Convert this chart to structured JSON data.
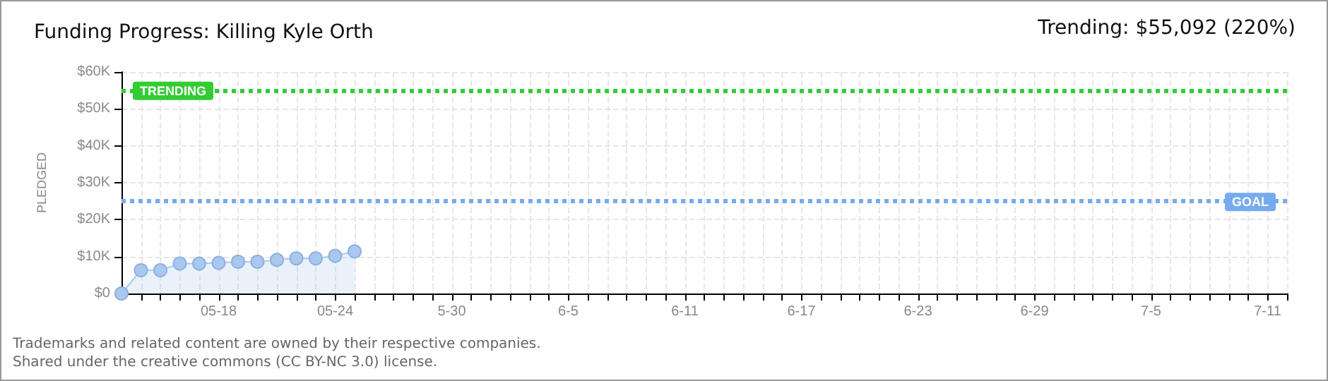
{
  "chart_data": {
    "type": "area",
    "title": "Funding Progress: Killing Kyle Orth",
    "ylabel": "PLEDGED",
    "annotations": [
      "Trending: $55,092 (220%)",
      "Trademarks and related content are owned by their respective companies.",
      "Shared under the creative commons (CC BY-NC 3.0) license."
    ],
    "x": [
      "--05-13",
      "--05-14",
      "--05-15",
      "--05-16",
      "--05-17",
      "--05-18",
      "--05-19",
      "--05-20",
      "--05-21",
      "--05-22",
      "--05-23",
      "--05-24",
      "--05-25"
    ],
    "series": [
      {
        "color": "#a8c8f0",
        "values": [
          0,
          6300,
          6300,
          8100,
          8100,
          8300,
          8600,
          8600,
          9100,
          9500,
          9500,
          10200,
          11400
        ]
      }
    ],
    "marker": "circle",
    "grid": true,
    "xlim": [
      "--05-13",
      "--07-12"
    ],
    "xticks": [
      {
        "value": "--05-13",
        "label": null
      },
      {
        "value": "--05-14",
        "label": null
      },
      {
        "value": "--05-15",
        "label": null
      },
      {
        "value": "--05-16",
        "label": null
      },
      {
        "value": "--05-17",
        "label": null
      },
      {
        "value": "--05-18",
        "label": "05-18"
      },
      {
        "value": "--05-19",
        "label": null
      },
      {
        "value": "--05-20",
        "label": null
      },
      {
        "value": "--05-21",
        "label": null
      },
      {
        "value": "--05-22",
        "label": null
      },
      {
        "value": "--05-23",
        "label": null
      },
      {
        "value": "--05-24",
        "label": "05-24"
      },
      {
        "value": "--05-25",
        "label": null
      },
      {
        "value": "--05-26",
        "label": null
      },
      {
        "value": "--05-27",
        "label": null
      },
      {
        "value": "--05-28",
        "label": null
      },
      {
        "value": "--05-29",
        "label": null
      },
      {
        "value": "--05-30",
        "label": "5-30"
      },
      {
        "value": "--05-31",
        "label": null
      },
      {
        "value": "--06-01",
        "label": null
      },
      {
        "value": "--06-02",
        "label": null
      },
      {
        "value": "--06-03",
        "label": null
      },
      {
        "value": "--06-04",
        "label": null
      },
      {
        "value": "--06-05",
        "label": "6-5"
      },
      {
        "value": "--06-06",
        "label": null
      },
      {
        "value": "--06-07",
        "label": null
      },
      {
        "value": "--06-08",
        "label": null
      },
      {
        "value": "--06-09",
        "label": null
      },
      {
        "value": "--06-10",
        "label": null
      },
      {
        "value": "--06-11",
        "label": "6-11"
      },
      {
        "value": "--06-12",
        "label": null
      },
      {
        "value": "--06-13",
        "label": null
      },
      {
        "value": "--06-14",
        "label": null
      },
      {
        "value": "--06-15",
        "label": null
      },
      {
        "value": "--06-16",
        "label": null
      },
      {
        "value": "--06-17",
        "label": "6-17"
      },
      {
        "value": "--06-18",
        "label": null
      },
      {
        "value": "--06-19",
        "label": null
      },
      {
        "value": "--06-20",
        "label": null
      },
      {
        "value": "--06-21",
        "label": null
      },
      {
        "value": "--06-22",
        "label": null
      },
      {
        "value": "--06-23",
        "label": "6-23"
      },
      {
        "value": "--06-24",
        "label": null
      },
      {
        "value": "--06-25",
        "label": null
      },
      {
        "value": "--06-26",
        "label": null
      },
      {
        "value": "--06-27",
        "label": null
      },
      {
        "value": "--06-28",
        "label": null
      },
      {
        "value": "--06-29",
        "label": "6-29"
      },
      {
        "value": "--06-30",
        "label": null
      },
      {
        "value": "--07-01",
        "label": null
      },
      {
        "value": "--07-02",
        "label": null
      },
      {
        "value": "--07-03",
        "label": null
      },
      {
        "value": "--07-04",
        "label": null
      },
      {
        "value": "--07-05",
        "label": "7-5"
      },
      {
        "value": "--07-06",
        "label": null
      },
      {
        "value": "--07-07",
        "label": null
      },
      {
        "value": "--07-08",
        "label": null
      },
      {
        "value": "--07-09",
        "label": null
      },
      {
        "value": "--07-10",
        "label": null
      },
      {
        "value": "--07-11",
        "label": "7-11"
      },
      {
        "value": "--07-12",
        "label": null
      }
    ],
    "ylim": [
      0,
      60000
    ],
    "yticks": [
      {
        "value": 0,
        "label": "$0"
      },
      {
        "value": 10000,
        "label": "$10K"
      },
      {
        "value": 20000,
        "label": "$20K"
      },
      {
        "value": 30000,
        "label": "$30K"
      },
      {
        "value": 40000,
        "label": "$40K"
      },
      {
        "value": 50000,
        "label": "$50K"
      },
      {
        "value": 60000,
        "label": "$60K"
      }
    ],
    "ref_lines": [
      {
        "axis": "y",
        "value": 55092,
        "label": "TRENDING",
        "color": "#33cc33",
        "line_style": "dotted"
      },
      {
        "axis": "y",
        "value": 25000,
        "label": "GOAL",
        "color": "#77aaee",
        "line_style": "dotted"
      }
    ]
  }
}
